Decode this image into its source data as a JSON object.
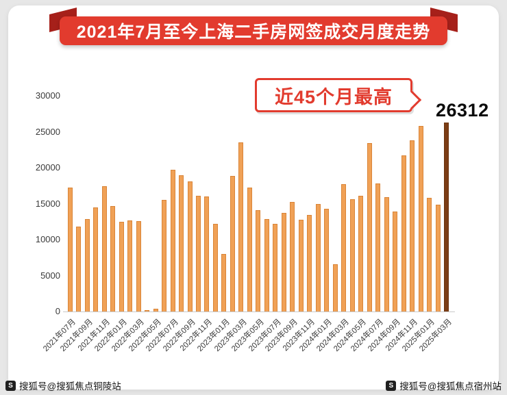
{
  "banner": {
    "title": "2021年7月至今上海二手房网签成交月度走势"
  },
  "annotation": {
    "label": "近45个月最高",
    "value": "26312"
  },
  "watermarks": {
    "left": "搜狐号@搜狐焦点铜陵站",
    "right": "搜狐号@搜狐焦点宿州站",
    "icon_text": "S"
  },
  "colors": {
    "bar": "#F0A156",
    "bar_border": "#D98437",
    "bar_highlight": "#7C3D15",
    "bar_highlight_border": "#6A330F",
    "banner_bg": "#E23B2E",
    "banner_fold": "#A6201A",
    "accent_red": "#E23B2E"
  },
  "chart_data": {
    "type": "bar",
    "title": "2021年7月至今上海二手房网签成交月度走势",
    "xlabel": "",
    "ylabel": "",
    "ylim": [
      0,
      30000
    ],
    "yticks": [
      0,
      5000,
      10000,
      15000,
      20000,
      25000,
      30000
    ],
    "grid": false,
    "legend": "none",
    "x_tick_every": 2,
    "categories": [
      "2021年07月",
      "2021年08月",
      "2021年09月",
      "2021年10月",
      "2021年11月",
      "2021年12月",
      "2022年01月",
      "2022年02月",
      "2022年03月",
      "2022年04月",
      "2022年05月",
      "2022年06月",
      "2022年07月",
      "2022年08月",
      "2022年09月",
      "2022年10月",
      "2022年11月",
      "2022年12月",
      "2023年01月",
      "2023年02月",
      "2023年03月",
      "2023年04月",
      "2023年05月",
      "2023年06月",
      "2023年07月",
      "2023年08月",
      "2023年09月",
      "2023年10月",
      "2023年11月",
      "2023年12月",
      "2024年01月",
      "2024年02月",
      "2024年03月",
      "2024年04月",
      "2024年05月",
      "2024年06月",
      "2024年07月",
      "2024年08月",
      "2024年09月",
      "2024年10月",
      "2024年11月",
      "2024年12月",
      "2025年01月",
      "2025年02月",
      "2025年03月"
    ],
    "values": [
      17200,
      11800,
      12900,
      14500,
      17400,
      14700,
      12500,
      12700,
      12600,
      150,
      400,
      15500,
      19700,
      19000,
      18100,
      16100,
      16000,
      12200,
      8000,
      18900,
      23500,
      17200,
      14100,
      12900,
      12200,
      13700,
      15200,
      12800,
      13400,
      15000,
      14300,
      6600,
      17700,
      15600,
      16100,
      23400,
      17800,
      15900,
      13900,
      21700,
      23800,
      25800,
      15800,
      14900,
      26312
    ],
    "highlight_index": 44,
    "highlight_value_label": "26312",
    "annotation": "近45个月最高"
  }
}
